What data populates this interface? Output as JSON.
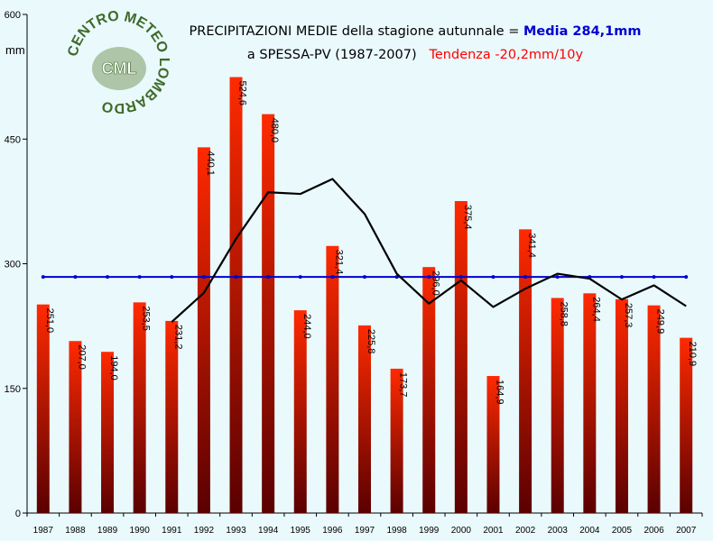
{
  "colors": {
    "background": "#eaf9fc",
    "bar_top": "#ff2a00",
    "bar_bottom": "#5a0000",
    "mean_line": "#0000d0",
    "trend_line": "#000000",
    "highlight_blue": "#0000d0",
    "highlight_red": "#ff0000"
  },
  "logo": {
    "ring_text": "CENTRO METEO LOMBARDO",
    "center_text": "CML"
  },
  "chart_data": {
    "type": "bar",
    "title_line1_prefix": "PRECIPITAZIONI MEDIE della stagione autunnale = ",
    "title_line1_highlight": "Media 284,1mm",
    "title_line2_prefix": "a SPESSA-PV (1987-2007)",
    "title_line2_highlight": "Tendenza -20,2mm/10y",
    "ylabel": "mm",
    "ylim": [
      0,
      600
    ],
    "yticks": [
      "0",
      "150",
      "300",
      "450",
      "600"
    ],
    "categories": [
      "1987",
      "1988",
      "1989",
      "1990",
      "1991",
      "1992",
      "1993",
      "1994",
      "1995",
      "1996",
      "1997",
      "1998",
      "1999",
      "2000",
      "2001",
      "2002",
      "2003",
      "2004",
      "2005",
      "2006",
      "2007"
    ],
    "values": [
      251.0,
      207.0,
      194.0,
      253.5,
      231.2,
      440.1,
      524.6,
      480.0,
      244.0,
      321.4,
      225.8,
      173.7,
      296.0,
      375.4,
      164.9,
      341.4,
      258.8,
      264.4,
      257.3,
      249.9,
      210.9
    ],
    "labels": [
      "251,0",
      "207,0",
      "194,0",
      "253,5",
      "231,2",
      "440,1",
      "524,6",
      "480,0",
      "244,0",
      "321,4",
      "225,8",
      "173,7",
      "296,0",
      "375,4",
      "164,9",
      "341,4",
      "258,8",
      "264,4",
      "257,3",
      "249,9",
      "210,9"
    ],
    "mean_value": 284.1,
    "moving_average": [
      null,
      null,
      null,
      null,
      230,
      265,
      330,
      386,
      384,
      402,
      360,
      288,
      252,
      280,
      248,
      270,
      288,
      282,
      257,
      274,
      249
    ],
    "grid": false
  }
}
